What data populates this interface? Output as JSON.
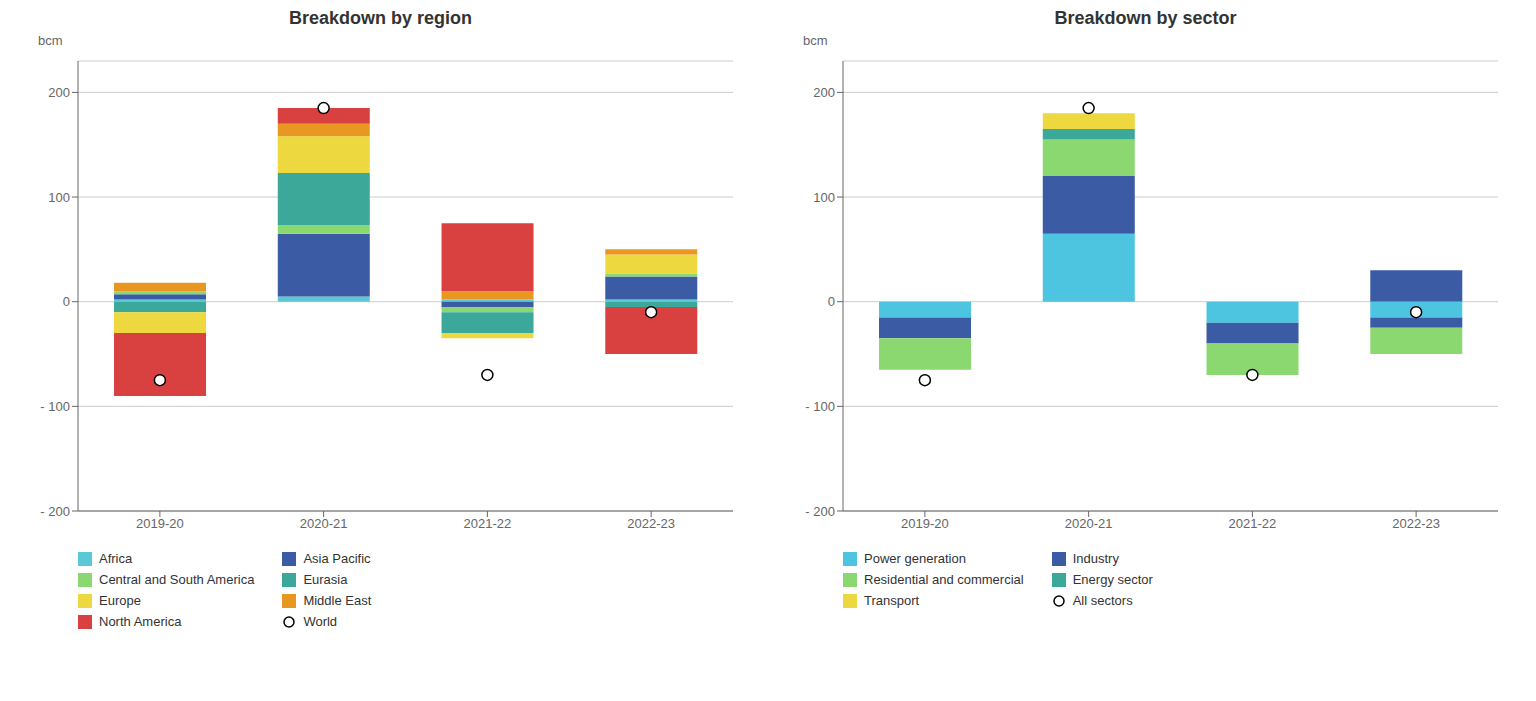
{
  "chart_data": [
    {
      "type": "bar",
      "stacked": true,
      "title": "Breakdown by region",
      "ylabel": "bcm",
      "categories": [
        "2019-20",
        "2020-21",
        "2021-22",
        "2022-23"
      ],
      "ylim": [
        -200,
        230
      ],
      "yticks": [
        {
          "value": -200,
          "label": "- 200"
        },
        {
          "value": -100,
          "label": "- 100"
        },
        0,
        100,
        200
      ],
      "grid": true,
      "legend": "bottom",
      "series": [
        {
          "name": "Africa",
          "type": "bar",
          "color": "#5BC8D8",
          "values": [
            2,
            5,
            2,
            2
          ],
          "negative_values": [
            0,
            0,
            0,
            0
          ]
        },
        {
          "name": "Asia Pacific",
          "type": "bar",
          "color": "#3B5BA5",
          "values": [
            5,
            60,
            0,
            22
          ],
          "negative_values": [
            0,
            0,
            -5,
            0
          ]
        },
        {
          "name": "Central and South America",
          "type": "bar",
          "color": "#8CD870",
          "values": [
            3,
            8,
            0,
            3
          ],
          "negative_values": [
            0,
            0,
            -5,
            0
          ]
        },
        {
          "name": "Eurasia",
          "type": "bar",
          "color": "#3BA89A",
          "values": [
            0,
            50,
            0,
            0
          ],
          "negative_values": [
            -10,
            0,
            -20,
            -5
          ]
        },
        {
          "name": "Europe",
          "type": "bar",
          "color": "#EDD840",
          "values": [
            0,
            35,
            0,
            18
          ],
          "negative_values": [
            -20,
            0,
            -5,
            0
          ]
        },
        {
          "name": "Middle East",
          "type": "bar",
          "color": "#E89820",
          "values": [
            8,
            12,
            8,
            5
          ],
          "negative_values": [
            0,
            0,
            0,
            0
          ]
        },
        {
          "name": "North America",
          "type": "bar",
          "color": "#D94040",
          "values": [
            0,
            15,
            65,
            0
          ],
          "negative_values": [
            -60,
            0,
            0,
            -45
          ]
        },
        {
          "name": "World",
          "type": "scatter",
          "marker": "circle",
          "values": [
            -75,
            185,
            -70,
            -10
          ]
        }
      ]
    },
    {
      "type": "bar",
      "stacked": true,
      "title": "Breakdown by sector",
      "ylabel": "bcm",
      "categories": [
        "2019-20",
        "2020-21",
        "2021-22",
        "2022-23"
      ],
      "ylim": [
        -200,
        230
      ],
      "yticks": [
        {
          "value": -200,
          "label": "- 200"
        },
        {
          "value": -100,
          "label": "- 100"
        },
        0,
        100,
        200
      ],
      "grid": true,
      "legend": "bottom",
      "series": [
        {
          "name": "Power generation",
          "type": "bar",
          "color": "#4DC5E0",
          "values": [
            0,
            65,
            0,
            0
          ],
          "negative_values": [
            -15,
            0,
            -20,
            -15
          ]
        },
        {
          "name": "Industry",
          "type": "bar",
          "color": "#3B5BA5",
          "values": [
            0,
            55,
            0,
            30
          ],
          "negative_values": [
            -20,
            0,
            -20,
            -10
          ]
        },
        {
          "name": "Residential and commercial",
          "type": "bar",
          "color": "#8CD870",
          "values": [
            0,
            35,
            0,
            0
          ],
          "negative_values": [
            -30,
            0,
            -30,
            -25
          ]
        },
        {
          "name": "Energy sector",
          "type": "bar",
          "color": "#3BA89A",
          "values": [
            0,
            10,
            0,
            0
          ],
          "negative_values": [
            0,
            0,
            0,
            0
          ]
        },
        {
          "name": "Transport",
          "type": "bar",
          "color": "#EDD840",
          "values": [
            0,
            15,
            0,
            0
          ],
          "negative_values": [
            0,
            0,
            0,
            0
          ]
        },
        {
          "name": "All sectors",
          "type": "scatter",
          "marker": "circle",
          "values": [
            -75,
            185,
            -70,
            -10
          ]
        }
      ]
    }
  ]
}
